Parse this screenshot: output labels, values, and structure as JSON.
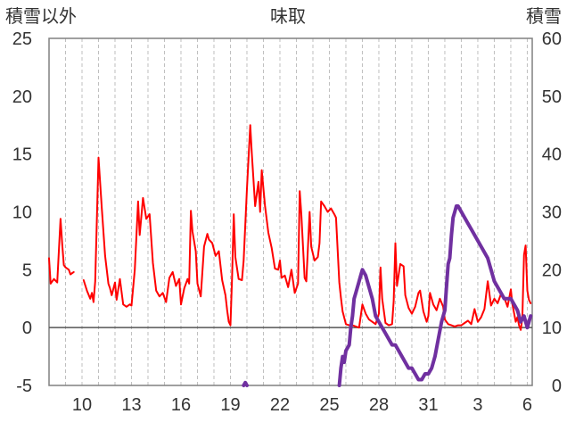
{
  "chart_data": {
    "type": "line",
    "title": "味取",
    "left_axis_label": "積雪以外",
    "right_axis_label": "積雪",
    "y_left": {
      "min": -5,
      "max": 25,
      "ticks": [
        -5,
        0,
        5,
        10,
        15,
        20,
        25
      ]
    },
    "y_right": {
      "min": 0,
      "max": 60,
      "ticks": [
        0,
        10,
        20,
        30,
        40,
        50,
        60
      ]
    },
    "x_labels": [
      "10",
      "13",
      "16",
      "19",
      "22",
      "25",
      "28",
      "31",
      "3",
      "6"
    ],
    "grid": {
      "vertical_dashed": true,
      "horizontal": false
    },
    "colors": {
      "red_series": "#ff0000",
      "purple_series": "#7030a0",
      "zero_line": "#555555",
      "frame": "#808080"
    },
    "series": [
      {
        "axis": "left",
        "color": "#ff0000",
        "points": [
          [
            8.0,
            6.0
          ],
          [
            8.1,
            3.8
          ],
          [
            8.3,
            4.2
          ],
          [
            8.5,
            3.9
          ],
          [
            8.7,
            9.4
          ],
          [
            8.8,
            7.2
          ],
          [
            8.9,
            5.4
          ],
          [
            9.0,
            5.2
          ],
          [
            9.2,
            5.0
          ],
          [
            9.3,
            4.6
          ],
          [
            9.5,
            4.8
          ],
          [
            10.1,
            4.1
          ],
          [
            10.3,
            3.2
          ],
          [
            10.5,
            2.5
          ],
          [
            10.6,
            3.0
          ],
          [
            10.7,
            2.2
          ],
          [
            10.8,
            4.0
          ],
          [
            11.0,
            14.7
          ],
          [
            11.2,
            10.3
          ],
          [
            11.4,
            6.2
          ],
          [
            11.6,
            3.8
          ],
          [
            11.7,
            3.4
          ],
          [
            11.8,
            2.8
          ],
          [
            12.0,
            3.9
          ],
          [
            12.1,
            2.4
          ],
          [
            12.3,
            4.2
          ],
          [
            12.5,
            2.0
          ],
          [
            12.7,
            1.8
          ],
          [
            12.9,
            2.0
          ],
          [
            13.0,
            1.9
          ],
          [
            13.2,
            5.0
          ],
          [
            13.4,
            10.9
          ],
          [
            13.5,
            8.0
          ],
          [
            13.7,
            11.2
          ],
          [
            13.9,
            9.4
          ],
          [
            14.1,
            9.8
          ],
          [
            14.3,
            5.6
          ],
          [
            14.5,
            3.2
          ],
          [
            14.7,
            2.7
          ],
          [
            14.9,
            3.0
          ],
          [
            15.1,
            2.2
          ],
          [
            15.3,
            4.3
          ],
          [
            15.5,
            4.8
          ],
          [
            15.7,
            3.6
          ],
          [
            15.9,
            4.2
          ],
          [
            16.0,
            2.0
          ],
          [
            16.2,
            3.4
          ],
          [
            16.4,
            4.2
          ],
          [
            16.5,
            3.8
          ],
          [
            16.6,
            10.1
          ],
          [
            16.7,
            8.3
          ],
          [
            16.9,
            6.6
          ],
          [
            17.0,
            3.8
          ],
          [
            17.2,
            2.7
          ],
          [
            17.4,
            7.0
          ],
          [
            17.6,
            8.1
          ],
          [
            17.7,
            7.6
          ],
          [
            17.9,
            7.3
          ],
          [
            18.1,
            6.2
          ],
          [
            18.3,
            6.6
          ],
          [
            18.5,
            4.1
          ],
          [
            18.7,
            2.8
          ],
          [
            18.8,
            1.5
          ],
          [
            18.9,
            0.5
          ],
          [
            19.0,
            0.2
          ],
          [
            19.1,
            4.3
          ],
          [
            19.2,
            9.8
          ],
          [
            19.3,
            6.1
          ],
          [
            19.5,
            4.2
          ],
          [
            19.7,
            4.1
          ],
          [
            19.8,
            5.8
          ],
          [
            20.0,
            12.0
          ],
          [
            20.2,
            17.5
          ],
          [
            20.3,
            15.0
          ],
          [
            20.5,
            10.5
          ],
          [
            20.7,
            12.6
          ],
          [
            20.8,
            10.0
          ],
          [
            20.9,
            13.6
          ],
          [
            21.0,
            12.0
          ],
          [
            21.1,
            10.5
          ],
          [
            21.3,
            8.2
          ],
          [
            21.5,
            6.9
          ],
          [
            21.7,
            5.1
          ],
          [
            21.9,
            5.0
          ],
          [
            22.0,
            5.8
          ],
          [
            22.1,
            4.3
          ],
          [
            22.3,
            4.5
          ],
          [
            22.5,
            3.5
          ],
          [
            22.7,
            5.0
          ],
          [
            22.9,
            3.0
          ],
          [
            23.1,
            3.8
          ],
          [
            23.2,
            11.8
          ],
          [
            23.3,
            9.8
          ],
          [
            23.5,
            4.3
          ],
          [
            23.6,
            4.0
          ],
          [
            23.8,
            10.0
          ],
          [
            23.9,
            7.0
          ],
          [
            24.1,
            5.8
          ],
          [
            24.3,
            6.1
          ],
          [
            24.4,
            7.3
          ],
          [
            24.5,
            10.9
          ],
          [
            24.7,
            10.5
          ],
          [
            24.9,
            10.0
          ],
          [
            25.1,
            10.3
          ],
          [
            25.3,
            9.8
          ],
          [
            25.4,
            9.5
          ],
          [
            25.6,
            3.9
          ],
          [
            25.7,
            2.6
          ],
          [
            25.8,
            1.4
          ],
          [
            26.0,
            0.3
          ],
          [
            26.2,
            0.2
          ],
          [
            26.4,
            0.2
          ],
          [
            26.6,
            0.1
          ],
          [
            26.8,
            0.0
          ],
          [
            27.0,
            2.0
          ],
          [
            27.2,
            1.2
          ],
          [
            27.4,
            0.7
          ],
          [
            27.6,
            0.5
          ],
          [
            27.8,
            0.3
          ],
          [
            28.0,
            1.2
          ],
          [
            28.1,
            5.2
          ],
          [
            28.2,
            2.5
          ],
          [
            28.4,
            0.4
          ],
          [
            28.6,
            0.2
          ],
          [
            28.8,
            0.3
          ],
          [
            28.9,
            2.3
          ],
          [
            29.0,
            7.3
          ],
          [
            29.1,
            3.6
          ],
          [
            29.3,
            5.5
          ],
          [
            29.5,
            5.3
          ],
          [
            29.6,
            2.8
          ],
          [
            29.8,
            1.7
          ],
          [
            30.0,
            1.2
          ],
          [
            30.2,
            1.8
          ],
          [
            30.4,
            3.0
          ],
          [
            30.5,
            3.2
          ],
          [
            30.7,
            1.4
          ],
          [
            30.9,
            0.5
          ],
          [
            31.0,
            1.0
          ],
          [
            31.1,
            3.0
          ],
          [
            31.3,
            2.0
          ],
          [
            31.5,
            1.5
          ],
          [
            31.7,
            2.5
          ],
          [
            31.9,
            1.8
          ],
          [
            32.0,
            0.7
          ],
          [
            32.2,
            0.3
          ],
          [
            32.4,
            0.2
          ],
          [
            32.6,
            0.1
          ],
          [
            32.8,
            0.2
          ],
          [
            33.0,
            0.2
          ],
          [
            33.2,
            0.4
          ],
          [
            33.4,
            0.6
          ],
          [
            33.6,
            0.3
          ],
          [
            33.8,
            1.6
          ],
          [
            34.0,
            0.5
          ],
          [
            34.2,
            0.9
          ],
          [
            34.4,
            1.6
          ],
          [
            34.6,
            4.0
          ],
          [
            34.8,
            1.9
          ],
          [
            35.0,
            2.5
          ],
          [
            35.2,
            2.1
          ],
          [
            35.4,
            2.9
          ],
          [
            35.6,
            2.6
          ],
          [
            35.8,
            1.8
          ],
          [
            36.0,
            3.3
          ],
          [
            36.1,
            2.0
          ],
          [
            36.3,
            0.5
          ],
          [
            36.4,
            0.9
          ],
          [
            36.5,
            0.2
          ],
          [
            36.6,
            -0.2
          ],
          [
            36.7,
            0.8
          ],
          [
            36.8,
            6.3
          ],
          [
            36.9,
            7.1
          ],
          [
            37.0,
            3.2
          ],
          [
            37.1,
            2.4
          ],
          [
            37.2,
            2.1
          ]
        ]
      },
      {
        "axis": "right",
        "color": "#7030a0",
        "points": [
          [
            8.0,
            0
          ],
          [
            19.8,
            0
          ],
          [
            19.9,
            0.5
          ],
          [
            20.0,
            0
          ],
          [
            25.6,
            0
          ],
          [
            25.7,
            3.0
          ],
          [
            25.8,
            5.0
          ],
          [
            25.9,
            4.0
          ],
          [
            26.0,
            6.0
          ],
          [
            26.2,
            7.0
          ],
          [
            26.3,
            10.0
          ],
          [
            26.4,
            12.0
          ],
          [
            26.5,
            15.0
          ],
          [
            26.6,
            16.0
          ],
          [
            26.8,
            18.0
          ],
          [
            26.9,
            19.0
          ],
          [
            27.0,
            20.0
          ],
          [
            27.2,
            19.0
          ],
          [
            27.4,
            17.0
          ],
          [
            27.6,
            15.0
          ],
          [
            27.8,
            12.0
          ],
          [
            28.0,
            11.0
          ],
          [
            28.2,
            10.0
          ],
          [
            28.4,
            9.0
          ],
          [
            28.6,
            8.0
          ],
          [
            28.8,
            7.0
          ],
          [
            29.0,
            7.0
          ],
          [
            29.2,
            6.0
          ],
          [
            29.4,
            5.0
          ],
          [
            29.6,
            4.0
          ],
          [
            29.8,
            3.0
          ],
          [
            30.0,
            3.0
          ],
          [
            30.2,
            2.0
          ],
          [
            30.4,
            1.0
          ],
          [
            30.6,
            1.0
          ],
          [
            30.8,
            2.0
          ],
          [
            31.0,
            2.0
          ],
          [
            31.2,
            3.0
          ],
          [
            31.4,
            5.0
          ],
          [
            31.6,
            8.0
          ],
          [
            31.8,
            11.0
          ],
          [
            32.0,
            13.0
          ],
          [
            32.1,
            17.0
          ],
          [
            32.2,
            21.0
          ],
          [
            32.3,
            22.0
          ],
          [
            32.4,
            26.0
          ],
          [
            32.5,
            29.0
          ],
          [
            32.6,
            30.0
          ],
          [
            32.7,
            31.0
          ],
          [
            32.8,
            31.0
          ],
          [
            33.0,
            30.0
          ],
          [
            33.2,
            29.0
          ],
          [
            33.4,
            28.0
          ],
          [
            33.6,
            27.0
          ],
          [
            33.8,
            26.0
          ],
          [
            34.0,
            25.0
          ],
          [
            34.2,
            24.0
          ],
          [
            34.4,
            23.0
          ],
          [
            34.6,
            22.0
          ],
          [
            34.8,
            20.0
          ],
          [
            35.0,
            18.0
          ],
          [
            35.2,
            17.0
          ],
          [
            35.4,
            16.0
          ],
          [
            35.6,
            15.0
          ],
          [
            35.8,
            15.0
          ],
          [
            36.0,
            15.0
          ],
          [
            36.2,
            14.0
          ],
          [
            36.4,
            13.0
          ],
          [
            36.6,
            11.0
          ],
          [
            36.8,
            12.0
          ],
          [
            37.0,
            10.0
          ],
          [
            37.2,
            12.0
          ]
        ]
      }
    ]
  }
}
